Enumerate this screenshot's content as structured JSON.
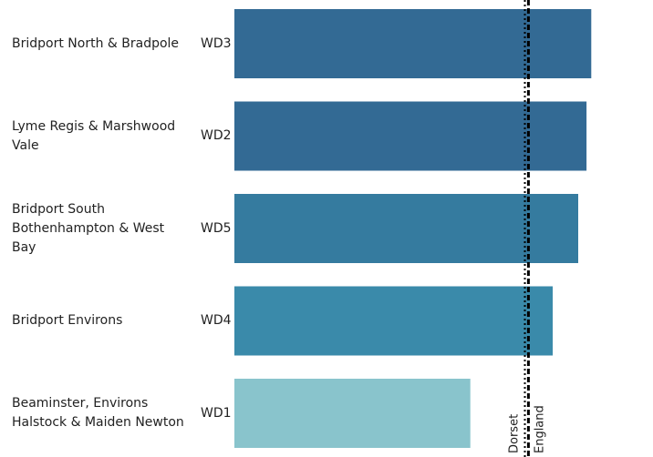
{
  "chart_data": {
    "type": "bar",
    "orientation": "horizontal",
    "names": [
      "Bridport North & Bradpole",
      "Lyme Regis & Marshwood Vale",
      "Bridport South Bothenhampton & West Bay",
      "Bridport Environs",
      "Beaminster, Environs Halstock & Maiden Newton"
    ],
    "categories": [
      "WD3",
      "WD2",
      "WD5",
      "WD4",
      "WD1"
    ],
    "values": [
      6.02,
      5.94,
      5.8,
      5.37,
      3.98
    ],
    "colors": [
      "#336a94",
      "#336a94",
      "#357b9f",
      "#3a8aaa",
      "#89c4cc"
    ],
    "xlim": [
      0,
      7
    ],
    "reference_lines": [
      {
        "name": "Dorset",
        "value": 4.9,
        "style": "dotted"
      },
      {
        "name": "England",
        "value": 4.96,
        "style": "dashed"
      }
    ]
  }
}
